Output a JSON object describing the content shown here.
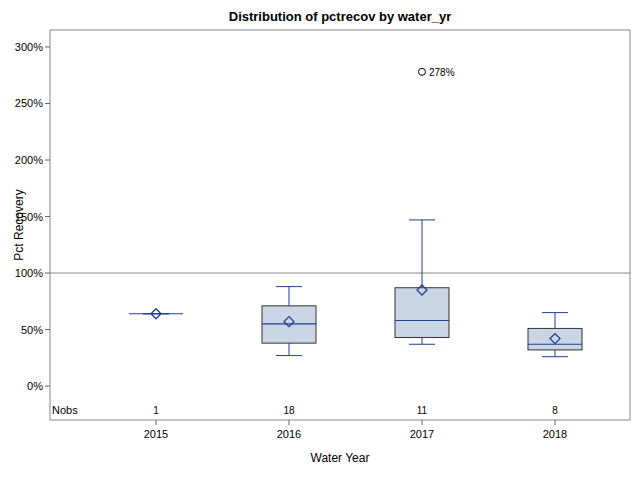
{
  "chart_data": {
    "type": "box",
    "title": "Distribution of pctrecov by water_yr",
    "x_label": "Water Year",
    "y_label": "Pct Recovery",
    "categories": [
      "2015",
      "2016",
      "2017",
      "2018"
    ],
    "nobs_label": "Nobs",
    "boxes": [
      {
        "min": 64,
        "q1": 64,
        "median": 64,
        "q3": 64,
        "max": 64,
        "mean": 64,
        "outliers": [],
        "outlier_labels": [],
        "nobs": 1
      },
      {
        "min": 27,
        "q1": 38,
        "median": 55,
        "q3": 71,
        "max": 88,
        "mean": 57,
        "outliers": [],
        "outlier_labels": [],
        "nobs": 18
      },
      {
        "min": 37,
        "q1": 43,
        "median": 58,
        "q3": 87,
        "max": 147,
        "mean": 85,
        "outliers": [
          278
        ],
        "outlier_labels": [
          "278%"
        ],
        "nobs": 11
      },
      {
        "min": 26,
        "q1": 32,
        "median": 37,
        "q3": 51,
        "max": 65,
        "mean": 42,
        "outliers": [],
        "outlier_labels": [],
        "nobs": 8
      }
    ],
    "reference_line": 100,
    "color": "#1f3f8f",
    "fill": "#cad5e5",
    "ylim": [
      -30,
      315
    ],
    "yticks": [
      {
        "value": 0,
        "label": "0%"
      },
      {
        "value": 50,
        "label": "50%"
      },
      {
        "value": 100,
        "label": "100%"
      },
      {
        "value": 150,
        "label": "150%"
      },
      {
        "value": 200,
        "label": "200%"
      },
      {
        "value": 250,
        "label": "250%"
      },
      {
        "value": 300,
        "label": "300%"
      }
    ],
    "grid": false
  }
}
